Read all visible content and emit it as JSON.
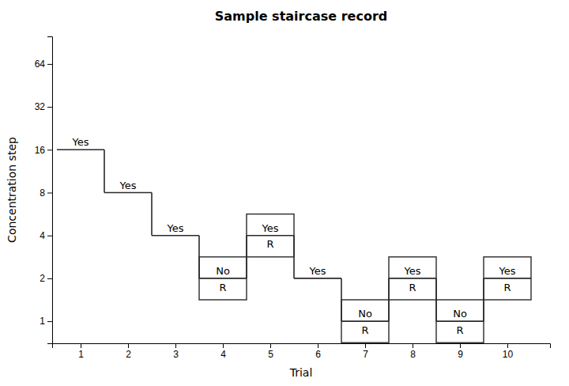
{
  "chart_data": {
    "type": "step",
    "title": "Sample staircase record",
    "xlabel": "Trial",
    "ylabel": "Concentration step",
    "x": [
      1,
      2,
      3,
      4,
      5,
      6,
      7,
      8,
      9,
      10
    ],
    "values": [
      16,
      8,
      4,
      2,
      4,
      2,
      1,
      2,
      1,
      2
    ],
    "responses": [
      "Yes",
      "Yes",
      "Yes",
      "No",
      "Yes",
      "Yes",
      "No",
      "Yes",
      "No",
      "Yes"
    ],
    "reversals": [
      false,
      false,
      false,
      true,
      true,
      false,
      true,
      true,
      true,
      true
    ],
    "reversal_label": "R",
    "color": "#2a2a2a",
    "log": "y",
    "xlim": [
      0.4,
      10.9
    ],
    "xticks": [
      1,
      2,
      3,
      4,
      5,
      6,
      7,
      8,
      9,
      10
    ],
    "ylim": [
      0.7,
      100
    ],
    "yticks": [
      1,
      2,
      4,
      8,
      16,
      32,
      64
    ],
    "grid": false
  }
}
